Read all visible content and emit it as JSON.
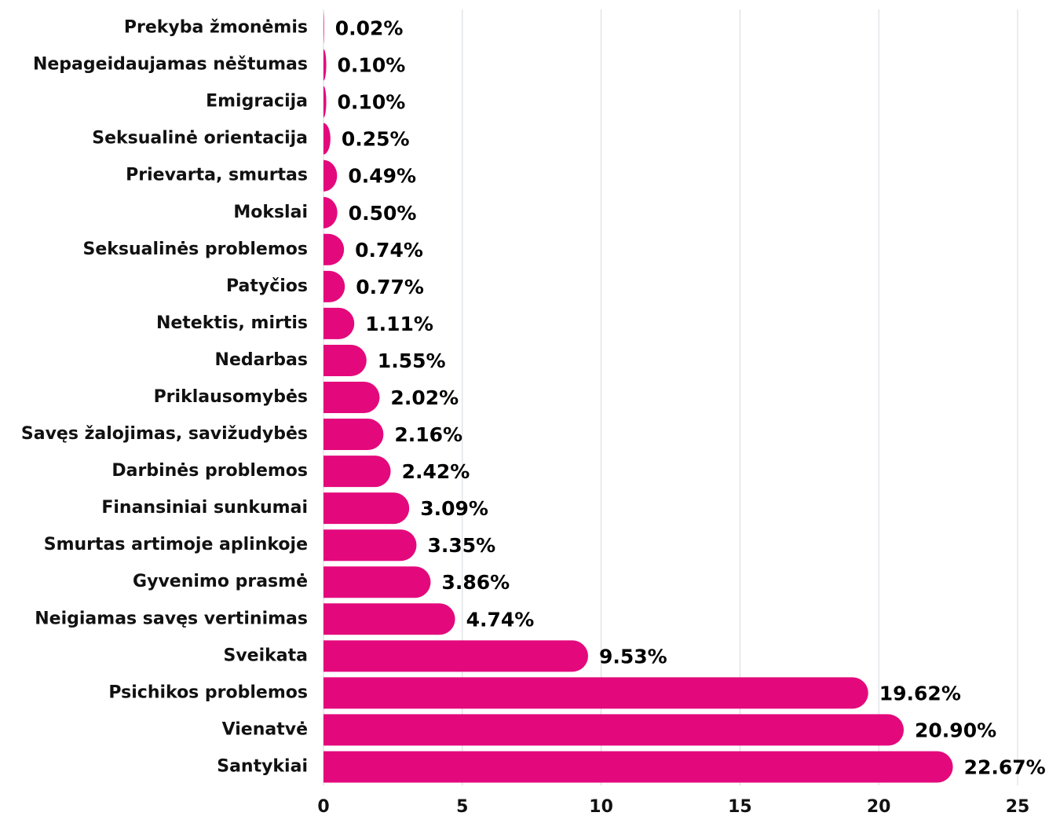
{
  "chart_data": {
    "type": "bar",
    "orientation": "horizontal",
    "categories": [
      "Prekyba žmonėmis",
      "Nepageidaujamas nėštumas",
      "Emigracija",
      "Seksualinė orientacija",
      "Prievarta, smurtas",
      "Mokslai",
      "Seksualinės problemos",
      "Patyčios",
      "Netektis, mirtis",
      "Nedarbas",
      "Priklausomybės",
      "Savęs žalojimas, savižudybės",
      "Darbinės problemos",
      "Finansiniai sunkumai",
      "Smurtas artimoje aplinkoje",
      "Gyvenimo prasmė",
      "Neigiamas savęs vertinimas",
      "Sveikata",
      "Psichikos problemos",
      "Vienatvė",
      "Santykiai"
    ],
    "values": [
      0.02,
      0.1,
      0.1,
      0.25,
      0.49,
      0.5,
      0.74,
      0.77,
      1.11,
      1.55,
      2.02,
      2.16,
      2.42,
      3.09,
      3.35,
      3.86,
      4.74,
      9.53,
      19.62,
      20.9,
      22.67
    ],
    "value_labels": [
      "0.02%",
      "0.10%",
      "0.10%",
      "0.25%",
      "0.49%",
      "0.50%",
      "0.74%",
      "0.77%",
      "1.11%",
      "1.55%",
      "2.02%",
      "2.16%",
      "2.42%",
      "3.09%",
      "3.35%",
      "3.86%",
      "4.74%",
      "9.53%",
      "19.62%",
      "20.90%",
      "22.67%"
    ],
    "color": "#e3097c",
    "xlim": [
      0,
      25
    ],
    "xticks": [
      0,
      5,
      10,
      15,
      20,
      25
    ],
    "grid": true
  }
}
